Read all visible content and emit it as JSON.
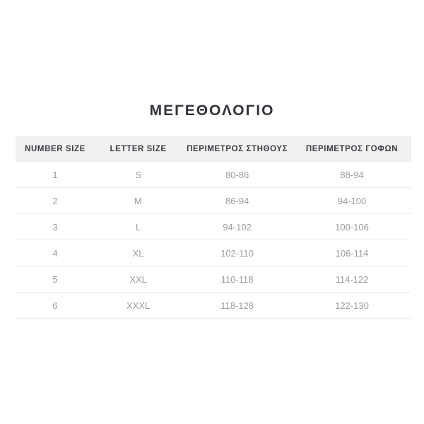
{
  "page": {
    "title": "ΜΕΓΕΘΟΛΟΓΙΟ"
  },
  "size_table": {
    "columns": [
      "NUMBER SIZE",
      "LETTER SIZE",
      "ΠΕΡΙΜΕΤΡΟΣ ΣΤΗΘΟΥΣ",
      "ΠΕΡΙΜΕΤΡΟΣ ΓΟΦΩΝ"
    ],
    "rows": [
      {
        "number_size": "1",
        "letter_size": "S",
        "chest": "80-86",
        "hips": "88-94"
      },
      {
        "number_size": "2",
        "letter_size": "M",
        "chest": "86-94",
        "hips": "94-100"
      },
      {
        "number_size": "3",
        "letter_size": "L",
        "chest": "94-102",
        "hips": "100-106"
      },
      {
        "number_size": "4",
        "letter_size": "XL",
        "chest": "102-110",
        "hips": "106-114"
      },
      {
        "number_size": "5",
        "letter_size": "XXL",
        "chest": "110-118",
        "hips": "114-122"
      },
      {
        "number_size": "6",
        "letter_size": "XXXL",
        "chest": "118-128",
        "hips": "122-130"
      }
    ],
    "colors": {
      "header_bg": "#f1f1f2",
      "header_text": "#3b3c42",
      "body_text": "#9b9b9b",
      "row_border": "#ececec",
      "title_text": "#33343a"
    }
  }
}
